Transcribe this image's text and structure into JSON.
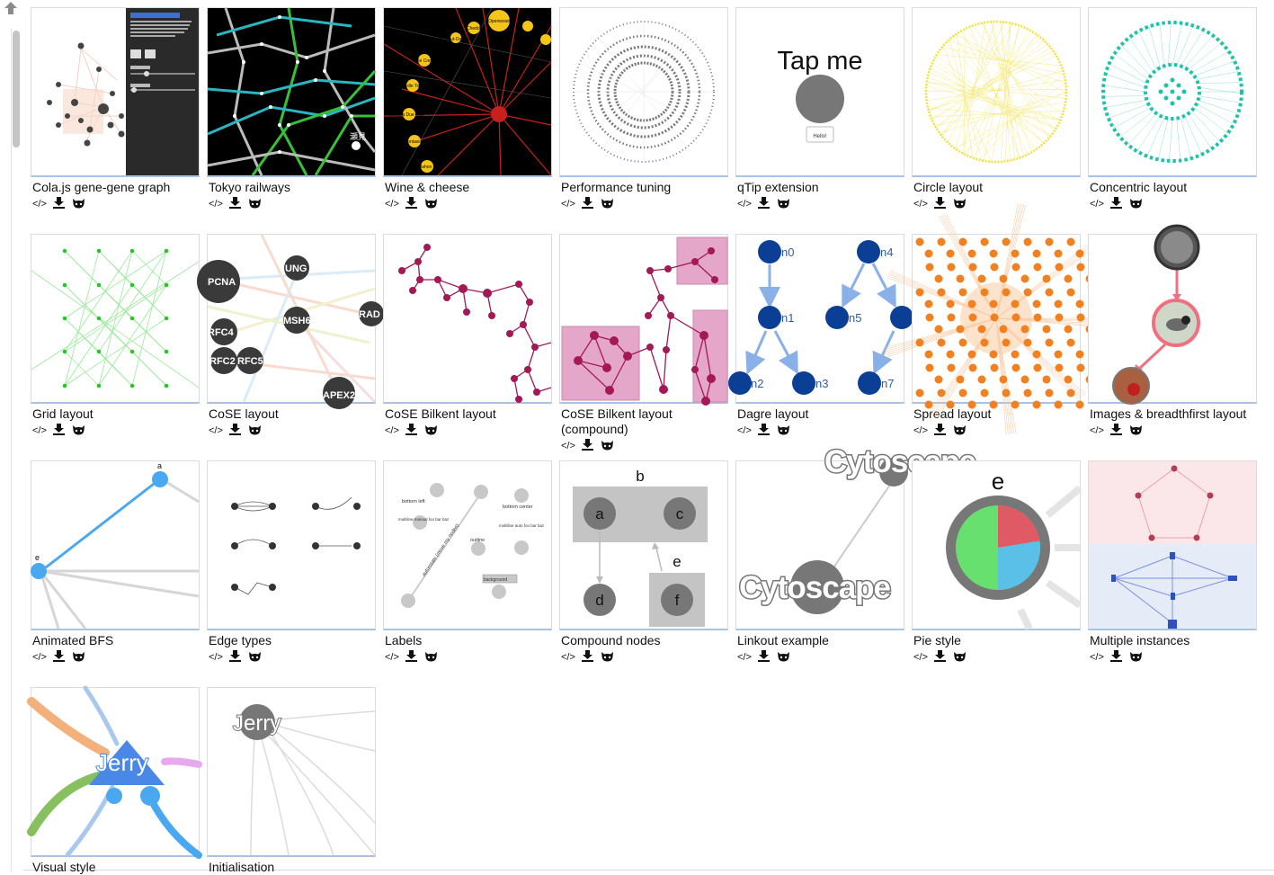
{
  "scroll": {
    "up_arrow": "up-arrow-icon"
  },
  "gallery": [
    {
      "title": "Cola.js gene-gene graph",
      "icons": [
        "code-icon",
        "download-icon",
        "github-cat-icon"
      ]
    },
    {
      "title": "Tokyo railways",
      "icons": [
        "code-icon",
        "download-icon",
        "github-cat-icon"
      ]
    },
    {
      "title": "Wine & cheese",
      "icons": [
        "code-icon",
        "download-icon",
        "github-cat-icon"
      ]
    },
    {
      "title": "Performance tuning",
      "icons": [
        "code-icon",
        "download-icon",
        "github-cat-icon"
      ]
    },
    {
      "title": "qTip extension",
      "icons": [
        "code-icon",
        "download-icon",
        "github-cat-icon"
      ]
    },
    {
      "title": "Circle layout",
      "icons": [
        "code-icon",
        "download-icon",
        "github-cat-icon"
      ]
    },
    {
      "title": "Concentric layout",
      "icons": [
        "code-icon",
        "download-icon",
        "github-cat-icon"
      ]
    },
    {
      "title": "Grid layout",
      "icons": [
        "code-icon",
        "download-icon",
        "github-cat-icon"
      ]
    },
    {
      "title": "CoSE layout",
      "icons": [
        "code-icon",
        "download-icon",
        "github-cat-icon"
      ]
    },
    {
      "title": "CoSE Bilkent layout",
      "icons": [
        "code-icon",
        "download-icon",
        "github-cat-icon"
      ]
    },
    {
      "title": "CoSE Bilkent layout (compound)",
      "icons": [
        "code-icon",
        "download-icon",
        "github-cat-icon"
      ]
    },
    {
      "title": "Dagre layout",
      "icons": [
        "code-icon",
        "download-icon",
        "github-cat-icon"
      ]
    },
    {
      "title": "Spread layout",
      "icons": [
        "code-icon",
        "download-icon",
        "github-cat-icon"
      ]
    },
    {
      "title": "Images & breadthfirst layout",
      "icons": [
        "code-icon",
        "download-icon",
        "github-cat-icon"
      ]
    },
    {
      "title": "Animated BFS",
      "icons": [
        "code-icon",
        "download-icon",
        "github-cat-icon"
      ]
    },
    {
      "title": "Edge types",
      "icons": [
        "code-icon",
        "download-icon",
        "github-cat-icon"
      ]
    },
    {
      "title": "Labels",
      "icons": [
        "code-icon",
        "download-icon",
        "github-cat-icon"
      ]
    },
    {
      "title": "Compound nodes",
      "icons": [
        "code-icon",
        "download-icon",
        "github-cat-icon"
      ]
    },
    {
      "title": "Linkout example",
      "icons": [
        "code-icon",
        "download-icon",
        "github-cat-icon"
      ]
    },
    {
      "title": "Pie style",
      "icons": [
        "code-icon",
        "download-icon",
        "github-cat-icon"
      ]
    },
    {
      "title": "Multiple instances",
      "icons": [
        "code-icon",
        "download-icon",
        "github-cat-icon"
      ]
    },
    {
      "title": "Visual style",
      "icons": []
    },
    {
      "title": "Initialisation",
      "icons": []
    }
  ],
  "thumb_text": {
    "tokyo_station": "瀬見",
    "wine_labels": [
      "Cheddar",
      "Openwood",
      "Vacherin du Haut-Doubs",
      "Triple Creme",
      "Thomasville Tomme",
      "Robiola a Due Latti",
      "Montasio",
      "Mahon"
    ],
    "qtip_tap": "Tap me",
    "qtip_hello": "Hello!",
    "cose_labels": [
      "PCNA",
      "UNG",
      "MSH6",
      "RAD",
      "RFC4",
      "RFC2",
      "RFC5",
      "APEX2"
    ],
    "dagre_labels": [
      "n0",
      "n1",
      "n2",
      "n3",
      "n4",
      "n5",
      "n7"
    ],
    "bfs_labels": [
      "a",
      "e"
    ],
    "labels_samples": [
      "bottom left",
      "bottom center",
      "multiline manual foo bar baz",
      "multiline auto foo bar baz",
      "outline",
      "background",
      "autorotate (move my nodes)"
    ],
    "compound_labels": [
      "b",
      "a",
      "c",
      "d",
      "e",
      "f"
    ],
    "linkout_labels": [
      "Cytoscape",
      "Cytoscape"
    ],
    "pie_label": "e",
    "visual_style_label": "Jerry",
    "init_label": "Jerry"
  },
  "colors": {
    "thumb_underline": "#a9c3e6",
    "tokyo_bg": "#000000",
    "wine_node": "#f5c518",
    "wine_edge": "#d8281e",
    "circle_yellow": "#f0e040",
    "concentric_teal": "#20c2a8",
    "grid_green": "#3ad03a",
    "cose_bilkent_magenta": "#a31955",
    "compound_pink": "#e4a7c9",
    "dagre_blue": "#0b3f95",
    "dagre_edge": "#8ab0e8",
    "spread_orange": "#f08020",
    "bfs_blue": "#4aa8f0",
    "pie_red": "#e05a66",
    "pie_blue": "#5ac0e8",
    "pie_green": "#68e070",
    "multi_pink": "#fbe7ea",
    "multi_blue": "#e6ebf8"
  }
}
